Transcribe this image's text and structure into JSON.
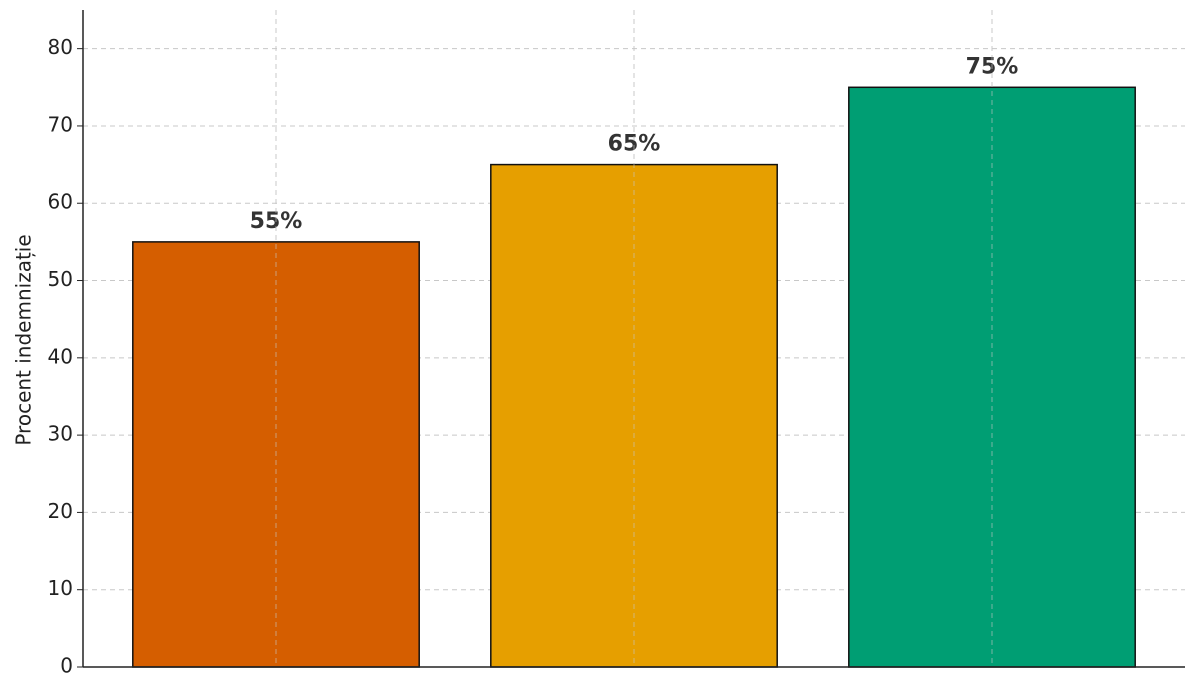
{
  "chart_data": {
    "type": "bar",
    "y_label": "Procent indemnizație",
    "categories": [
      null,
      null,
      null
    ],
    "values": [
      55,
      65,
      75
    ],
    "value_labels": [
      "55%",
      "65%",
      "75%"
    ],
    "colors": [
      "#d55e00",
      "#e69f00",
      "#009e73"
    ],
    "ylim": [
      0,
      85
    ],
    "yticks": [
      0,
      10,
      20,
      30,
      40,
      50,
      60,
      70,
      80
    ],
    "grid": true
  }
}
